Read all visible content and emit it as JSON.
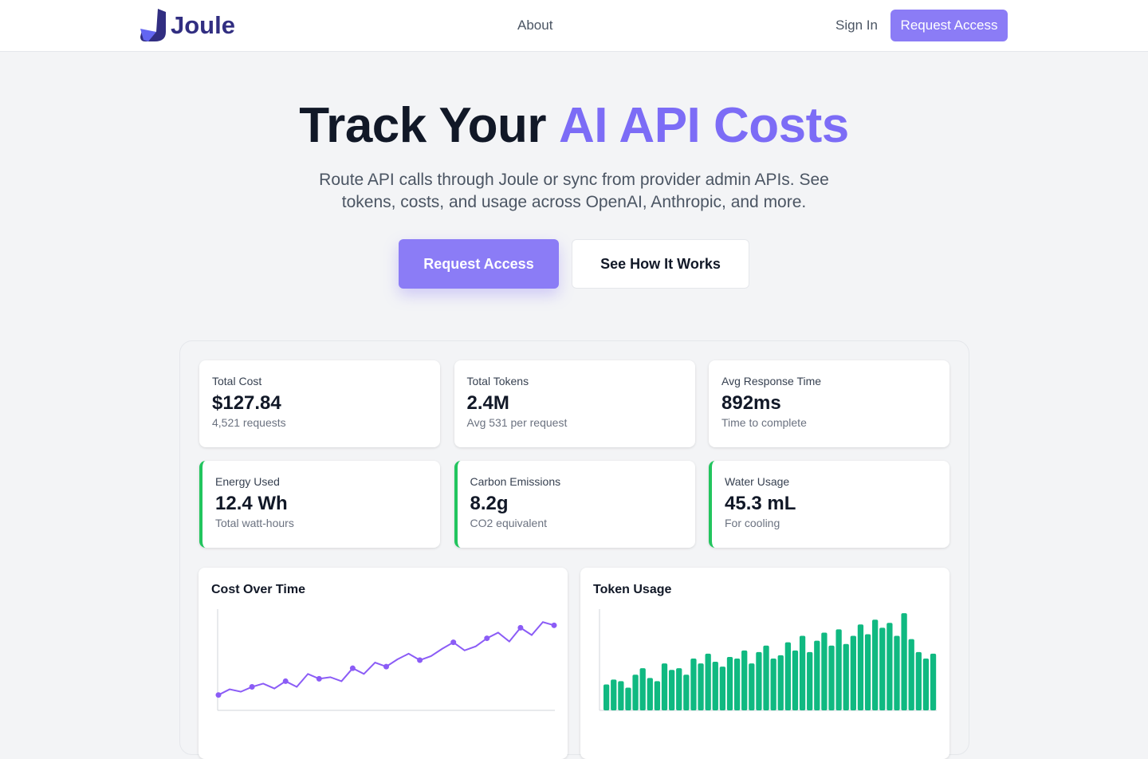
{
  "nav": {
    "brand": "Joule",
    "about": "About",
    "sign_in": "Sign In",
    "cta": "Request Access"
  },
  "hero": {
    "title": "Track Your",
    "title_accent": "AI API Costs",
    "subtitle": "Route API calls through Joule or sync from provider admin APIs. See tokens, costs, and usage across OpenAI, Anthropic, and more.",
    "primary_button": "Request Access",
    "secondary_button": "See How It Works"
  },
  "stats": [
    {
      "label": "Total Cost",
      "value": "$127.84",
      "note": "4,521 requests",
      "accent": false
    },
    {
      "label": "Total Tokens",
      "value": "2.4M",
      "note": "Avg 531 per request",
      "accent": false
    },
    {
      "label": "Avg Response Time",
      "value": "892ms",
      "note": "Time to complete",
      "accent": false
    },
    {
      "label": "Energy Used",
      "value": "12.4 Wh",
      "note": "Total watt-hours",
      "accent": true
    },
    {
      "label": "Carbon Emissions",
      "value": "8.2g",
      "note": "CO2 equivalent",
      "accent": true
    },
    {
      "label": "Water Usage",
      "value": "45.3 mL",
      "note": "For cooling",
      "accent": true
    }
  ],
  "charts": [
    {
      "type": "line",
      "title": "Cost Over Time",
      "color": "#8b5cf6",
      "ylim": [
        0,
        125
      ],
      "values": [
        19,
        26,
        23,
        29,
        33,
        27,
        36,
        29,
        45,
        39,
        41,
        36,
        52,
        45,
        59,
        54,
        63,
        70,
        62,
        67,
        76,
        84,
        74,
        79,
        89,
        96,
        85,
        102,
        93,
        109,
        105
      ]
    },
    {
      "type": "bar",
      "title": "Token Usage",
      "color": "#10b981",
      "ylim": [
        0,
        125
      ],
      "values": [
        32,
        38,
        36,
        28,
        44,
        52,
        40,
        36,
        58,
        50,
        52,
        44,
        64,
        58,
        70,
        60,
        54,
        66,
        64,
        74,
        58,
        72,
        80,
        64,
        68,
        84,
        74,
        92,
        72,
        86,
        96,
        80,
        100,
        82,
        92,
        106,
        94,
        112,
        102,
        108,
        92,
        120,
        88,
        72,
        64,
        70
      ]
    }
  ]
}
